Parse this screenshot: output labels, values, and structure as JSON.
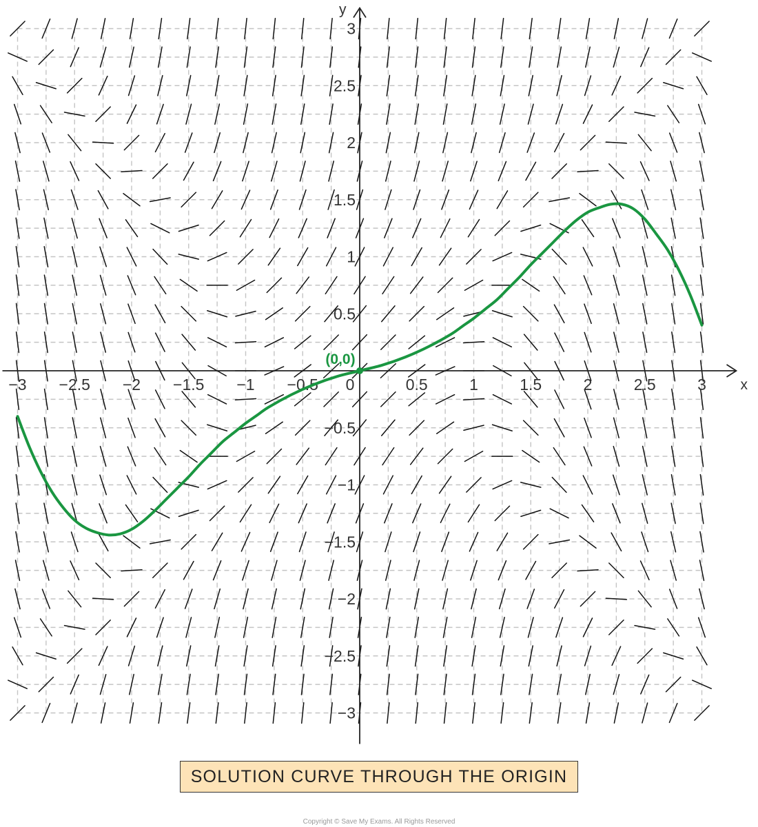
{
  "chart_data": {
    "type": "slope field",
    "xlabel": "x",
    "ylabel": "y",
    "xlim": [
      -3,
      3
    ],
    "ylim": [
      -3,
      3
    ],
    "grid": true,
    "x_ticks": [
      {
        "value": -3,
        "label": "−3"
      },
      {
        "value": -2.5,
        "label": "−2.5"
      },
      {
        "value": -2,
        "label": "−2"
      },
      {
        "value": -1.5,
        "label": "−1.5"
      },
      {
        "value": -1,
        "label": "−1"
      },
      {
        "value": -0.5,
        "label": "−0.5"
      },
      {
        "value": 0,
        "label": "0"
      },
      {
        "value": 0.5,
        "label": "0.5"
      },
      {
        "value": 1,
        "label": "1"
      },
      {
        "value": 1.5,
        "label": "1.5"
      },
      {
        "value": 2,
        "label": "2"
      },
      {
        "value": 2.5,
        "label": "2.5"
      },
      {
        "value": 3,
        "label": "3"
      }
    ],
    "y_ticks": [
      {
        "value": 3,
        "label": "3"
      },
      {
        "value": 2.5,
        "label": "2.5"
      },
      {
        "value": 2,
        "label": "2"
      },
      {
        "value": 1.5,
        "label": "1.5"
      },
      {
        "value": 1,
        "label": "1"
      },
      {
        "value": 0.5,
        "label": "0.5"
      },
      {
        "value": -0.5,
        "label": "−0.5"
      },
      {
        "value": -1,
        "label": "−1"
      },
      {
        "value": -1.5,
        "label": "−1.5"
      },
      {
        "value": -2,
        "label": "−2"
      },
      {
        "value": -2.5,
        "label": "−2.5"
      },
      {
        "value": -3,
        "label": "−3"
      }
    ],
    "slope_field": {
      "x_range": [
        -3,
        3
      ],
      "y_range": [
        -3,
        3
      ],
      "step": 0.25,
      "slope_rule": "dy/dx = 1 + y^2 - x^2"
    },
    "solution_curve": {
      "color": "#1a9641",
      "points": [
        {
          "x": -3.0,
          "y": -0.4
        },
        {
          "x": -2.9,
          "y": -0.66
        },
        {
          "x": -2.8,
          "y": -0.88
        },
        {
          "x": -2.7,
          "y": -1.06
        },
        {
          "x": -2.6,
          "y": -1.2
        },
        {
          "x": -2.5,
          "y": -1.31
        },
        {
          "x": -2.4,
          "y": -1.38
        },
        {
          "x": -2.3,
          "y": -1.42
        },
        {
          "x": -2.2,
          "y": -1.44
        },
        {
          "x": -2.1,
          "y": -1.43
        },
        {
          "x": -2.0,
          "y": -1.39
        },
        {
          "x": -1.9,
          "y": -1.32
        },
        {
          "x": -1.8,
          "y": -1.23
        },
        {
          "x": -1.7,
          "y": -1.13
        },
        {
          "x": -1.6,
          "y": -1.03
        },
        {
          "x": -1.5,
          "y": -0.93
        },
        {
          "x": -1.4,
          "y": -0.82
        },
        {
          "x": -1.3,
          "y": -0.72
        },
        {
          "x": -1.2,
          "y": -0.62
        },
        {
          "x": -1.1,
          "y": -0.54
        },
        {
          "x": -1.0,
          "y": -0.46
        },
        {
          "x": -0.9,
          "y": -0.39
        },
        {
          "x": -0.8,
          "y": -0.32
        },
        {
          "x": -0.6,
          "y": -0.21
        },
        {
          "x": -0.4,
          "y": -0.12
        },
        {
          "x": -0.2,
          "y": -0.05
        },
        {
          "x": 0.0,
          "y": 0.0
        },
        {
          "x": 0.2,
          "y": 0.05
        },
        {
          "x": 0.4,
          "y": 0.12
        },
        {
          "x": 0.6,
          "y": 0.21
        },
        {
          "x": 0.8,
          "y": 0.32
        },
        {
          "x": 0.9,
          "y": 0.39
        },
        {
          "x": 1.0,
          "y": 0.46
        },
        {
          "x": 1.1,
          "y": 0.54
        },
        {
          "x": 1.2,
          "y": 0.62
        },
        {
          "x": 1.3,
          "y": 0.72
        },
        {
          "x": 1.4,
          "y": 0.82
        },
        {
          "x": 1.5,
          "y": 0.93
        },
        {
          "x": 1.6,
          "y": 1.03
        },
        {
          "x": 1.7,
          "y": 1.13
        },
        {
          "x": 1.8,
          "y": 1.23
        },
        {
          "x": 1.9,
          "y": 1.32
        },
        {
          "x": 2.0,
          "y": 1.39
        },
        {
          "x": 2.1,
          "y": 1.43
        },
        {
          "x": 2.2,
          "y": 1.46
        },
        {
          "x": 2.3,
          "y": 1.46
        },
        {
          "x": 2.4,
          "y": 1.42
        },
        {
          "x": 2.5,
          "y": 1.33
        },
        {
          "x": 2.6,
          "y": 1.2
        },
        {
          "x": 2.7,
          "y": 1.06
        },
        {
          "x": 2.8,
          "y": 0.88
        },
        {
          "x": 2.9,
          "y": 0.66
        },
        {
          "x": 3.0,
          "y": 0.4
        }
      ]
    },
    "annotations": [
      {
        "x": 0,
        "y": 0,
        "label": "(0,0)",
        "color": "#1a9641"
      }
    ],
    "caption": "SOLUTION CURVE THROUGH THE ORIGIN"
  },
  "footer": {
    "copyright": "Copyright © Save My Exams. All Rights Reserved"
  }
}
